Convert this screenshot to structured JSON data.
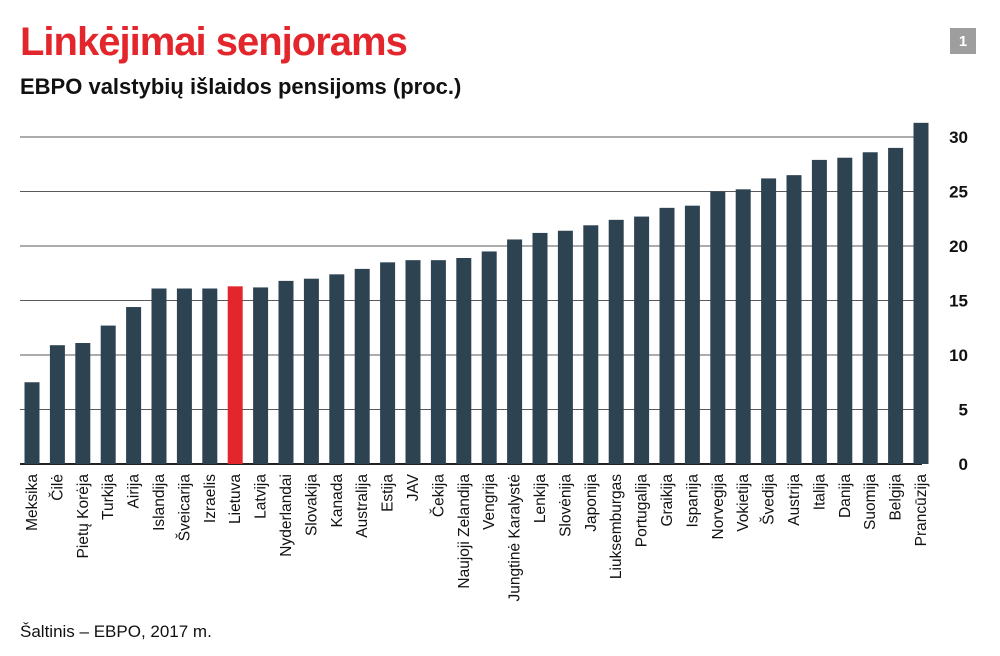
{
  "header": {
    "title": "Linkėjimai senjorams",
    "subtitle": "EBPO valstybių išlaidos pensijoms (proc.)",
    "badge": "1"
  },
  "footer": {
    "source": "Šaltinis – EBPO, 2017 m."
  },
  "colors": {
    "bar": "#2d4352",
    "highlight": "#e3262b",
    "grid": "#222222"
  },
  "chart_data": {
    "type": "bar",
    "title": "Linkėjimai senjorams",
    "subtitle": "EBPO valstybių išlaidos pensijoms (proc.)",
    "xlabel": "",
    "ylabel": "",
    "ylim": [
      0,
      31
    ],
    "yticks": [
      0,
      5,
      10,
      15,
      20,
      25,
      30
    ],
    "y_axis_side": "right",
    "grid": true,
    "highlight_category": "Lietuva",
    "categories": [
      "Meksika",
      "Čilė",
      "Pietų Korėja",
      "Turkija",
      "Airija",
      "Islandija",
      "Šveicarija",
      "Izraelis",
      "Lietuva",
      "Latvija",
      "Nyderlandai",
      "Slovakija",
      "Kanada",
      "Australija",
      "Estija",
      "JAV",
      "Čekija",
      "Naujoji Zelandija",
      "Vengrija",
      "Jungtinė Karalystė",
      "Lenkija",
      "Slovėnija",
      "Japonija",
      "Liuksemburgas",
      "Portugalija",
      "Graikija",
      "Ispanija",
      "Norvegija",
      "Vokietija",
      "Švedija",
      "Austrija",
      "Italija",
      "Danija",
      "Suomija",
      "Belgija",
      "Prancūzija"
    ],
    "values": [
      7.5,
      10.9,
      11.1,
      12.7,
      14.4,
      16.1,
      16.1,
      16.1,
      16.3,
      16.2,
      16.8,
      17.0,
      17.4,
      17.9,
      18.5,
      18.7,
      18.7,
      18.9,
      19.5,
      20.6,
      21.2,
      21.4,
      21.9,
      22.4,
      22.7,
      23.5,
      23.7,
      25.0,
      25.2,
      26.2,
      26.5,
      27.9,
      28.1,
      28.6,
      29.0,
      31.3
    ]
  }
}
